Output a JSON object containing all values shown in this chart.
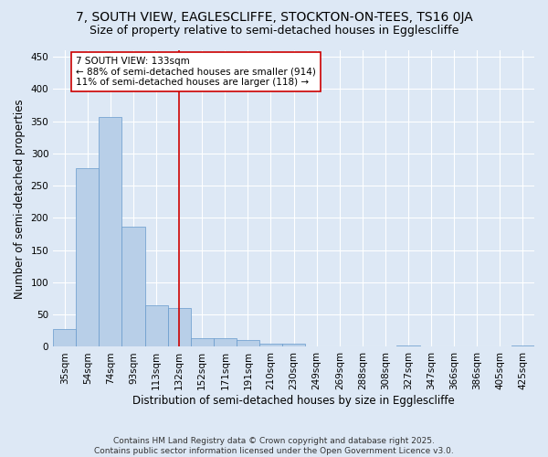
{
  "title1": "7, SOUTH VIEW, EAGLESCLIFFE, STOCKTON-ON-TEES, TS16 0JA",
  "title2": "Size of property relative to semi-detached houses in Egglescliffe",
  "xlabel": "Distribution of semi-detached houses by size in Egglescliffe",
  "ylabel": "Number of semi-detached properties",
  "categories": [
    "35sqm",
    "54sqm",
    "74sqm",
    "93sqm",
    "113sqm",
    "132sqm",
    "152sqm",
    "171sqm",
    "191sqm",
    "210sqm",
    "230sqm",
    "249sqm",
    "269sqm",
    "288sqm",
    "308sqm",
    "327sqm",
    "347sqm",
    "366sqm",
    "386sqm",
    "405sqm",
    "425sqm"
  ],
  "values": [
    27,
    277,
    357,
    187,
    65,
    60,
    13,
    13,
    10,
    5,
    5,
    0,
    0,
    0,
    0,
    2,
    0,
    0,
    0,
    0,
    2
  ],
  "bar_color": "#b8cfe8",
  "bar_edge_color": "#6699cc",
  "vline_x_index": 5,
  "vline_color": "#cc0000",
  "annotation_text": "7 SOUTH VIEW: 133sqm\n← 88% of semi-detached houses are smaller (914)\n11% of semi-detached houses are larger (118) →",
  "annotation_box_color": "#ffffff",
  "annotation_box_edge": "#cc0000",
  "ylim": [
    0,
    460
  ],
  "yticks": [
    0,
    50,
    100,
    150,
    200,
    250,
    300,
    350,
    400,
    450
  ],
  "bg_color": "#dde8f5",
  "plot_bg_color": "#dde8f5",
  "footer_text": "Contains HM Land Registry data © Crown copyright and database right 2025.\nContains public sector information licensed under the Open Government Licence v3.0.",
  "title_fontsize": 10,
  "subtitle_fontsize": 9,
  "annotation_fontsize": 7.5,
  "axis_label_fontsize": 8.5,
  "tick_fontsize": 7.5,
  "footer_fontsize": 6.5
}
